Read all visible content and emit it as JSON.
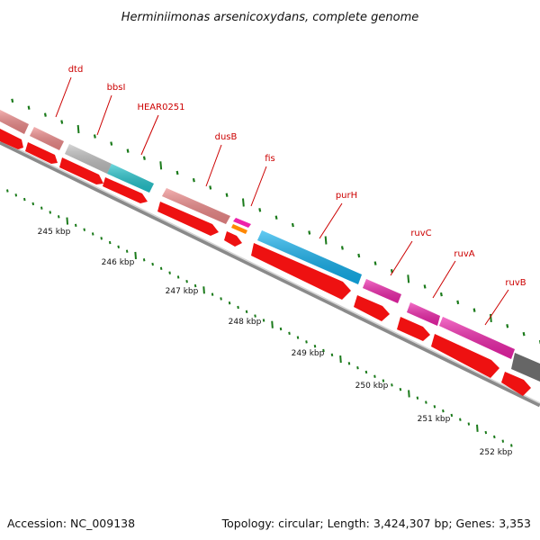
{
  "title": "Herminiimonas arsenicoxydans, complete genome",
  "footer": {
    "accession": "Accession: NC_009138",
    "topology": "Topology: circular; Length: 3,424,307 bp; Genes: 3,353"
  },
  "gene_labels": [
    "dtd",
    "bbsI",
    "HEAR0251",
    "dusB",
    "fis",
    "purH",
    "ruvC",
    "ruvA",
    "ruvB"
  ],
  "kbp_labels": [
    "245 kbp",
    "246 kbp",
    "247 kbp",
    "248 kbp",
    "249 kbp",
    "250 kbp",
    "251 kbp",
    "252 kbp"
  ],
  "colors": {
    "label": "#cc0000",
    "tick": "#1a7a1a",
    "backbone": "#8a8a8a",
    "cds": "#ee1111",
    "pink": "#ee8888",
    "grey": "#c0c0c0",
    "teal": "#22c4cc",
    "magenta": "#ee22aa",
    "orange": "#ff8800",
    "blue": "#11b0ee",
    "dark_grey": "#666666"
  }
}
